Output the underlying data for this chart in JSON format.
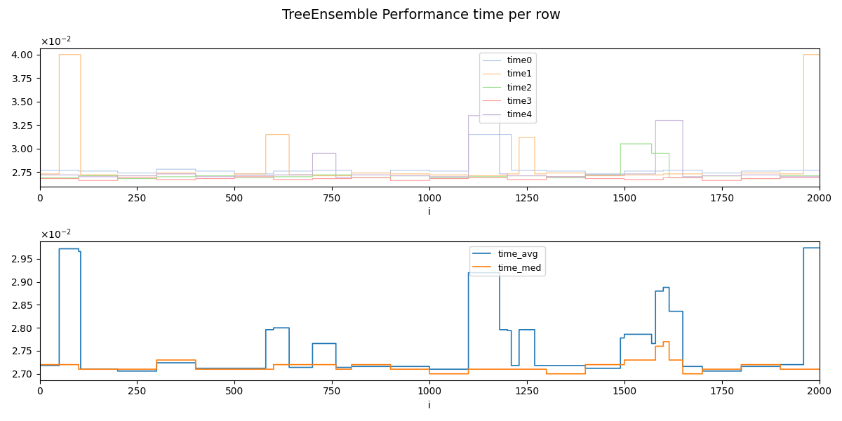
{
  "title": "TreeEnsemble Performance time per row",
  "xlabel": "i",
  "subplot1_labels": [
    "time0",
    "time1",
    "time2",
    "time3",
    "time4"
  ],
  "subplot2_labels": [
    "time_avg",
    "time_med"
  ],
  "subplot1_colors": [
    "#aec7e8",
    "#ffbb78",
    "#98df8a",
    "#ff9896",
    "#c5b0d5"
  ],
  "subplot2_colors": [
    "#1f77b4",
    "#ff7f0e"
  ],
  "n_points": 2000,
  "seed": 42,
  "figsize": [
    12.0,
    6.0
  ],
  "dpi": 100
}
